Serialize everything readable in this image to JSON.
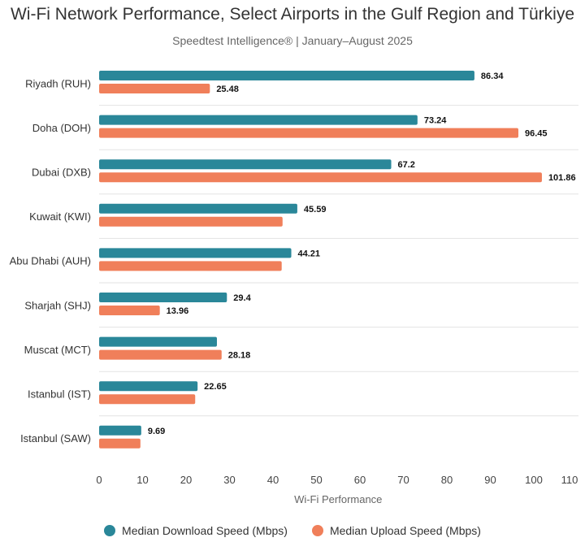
{
  "chart_data": {
    "type": "bar",
    "orientation": "horizontal",
    "title": "Wi-Fi Network Performance, Select Airports in the Gulf Region and Türkiye",
    "subtitle": "Speedtest Intelligence® | January–August 2025",
    "xlabel": "Wi-Fi Performance",
    "xlim": [
      0,
      110
    ],
    "xticks": [
      0,
      10,
      20,
      30,
      40,
      50,
      60,
      70,
      80,
      90,
      100,
      110
    ],
    "grid": false,
    "legend_position": "bottom",
    "categories": [
      "Riyadh (RUH)",
      "Doha (DOH)",
      "Dubai (DXB)",
      "Kuwait (KWI)",
      "Abu Dhabi (AUH)",
      "Sharjah (SHJ)",
      "Muscat (MCT)",
      "Istanbul (IST)",
      "Istanbul (SAW)"
    ],
    "series": [
      {
        "name": "Median Download Speed (Mbps)",
        "color": "#2a8799",
        "values": [
          86.34,
          73.24,
          67.2,
          45.59,
          44.21,
          29.4,
          27.1,
          22.65,
          9.69
        ],
        "labels": [
          "86.34",
          "73.24",
          "67.2",
          "45.59",
          "44.21",
          "29.4",
          "",
          "22.65",
          "9.69"
        ]
      },
      {
        "name": "Median Upload Speed (Mbps)",
        "color": "#f07f5a",
        "values": [
          25.48,
          96.45,
          101.86,
          42.2,
          42.0,
          13.96,
          28.18,
          22.1,
          9.5
        ],
        "labels": [
          "25.48",
          "96.45",
          "101.86",
          "",
          "",
          "13.96",
          "28.18",
          "",
          ""
        ]
      }
    ]
  }
}
